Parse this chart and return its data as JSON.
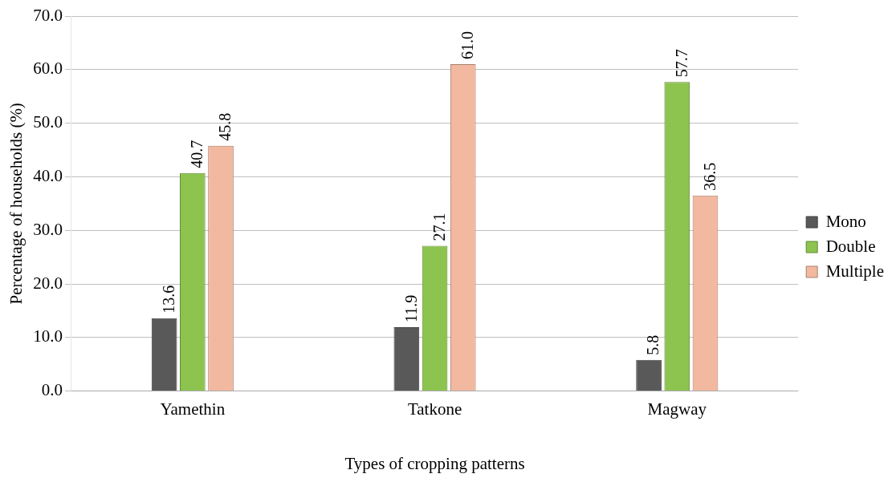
{
  "chart_data": {
    "type": "bar",
    "xlabel": "Types of cropping patterns",
    "ylabel": "Percentage of households (%)",
    "categories": [
      "Yamethin",
      "Tatkone",
      "Magway"
    ],
    "series": [
      {
        "name": "Mono",
        "color": "#595959",
        "values": [
          13.6,
          11.9,
          5.8
        ]
      },
      {
        "name": "Double",
        "color": "#8dc34f",
        "values": [
          40.7,
          27.1,
          57.7
        ]
      },
      {
        "name": "Multiple",
        "color": "#f2b9a0",
        "values": [
          45.8,
          61.0,
          36.5
        ]
      }
    ],
    "ylim": [
      0,
      70
    ],
    "yticks": [
      {
        "value": 0,
        "label": "0.0"
      },
      {
        "value": 10,
        "label": "10.0"
      },
      {
        "value": 20,
        "label": "20.0"
      },
      {
        "value": 30,
        "label": "30.0"
      },
      {
        "value": 40,
        "label": "40.0"
      },
      {
        "value": 50,
        "label": "50.0"
      },
      {
        "value": 60,
        "label": "60.0"
      },
      {
        "value": 70,
        "label": "70.0"
      }
    ],
    "value_labels": [
      [
        "13.6",
        "11.9",
        "5.8"
      ],
      [
        "40.7",
        "27.1",
        "57.7"
      ],
      [
        "45.8",
        "61.0",
        "36.5"
      ]
    ],
    "grid": "y",
    "legend": "right"
  }
}
